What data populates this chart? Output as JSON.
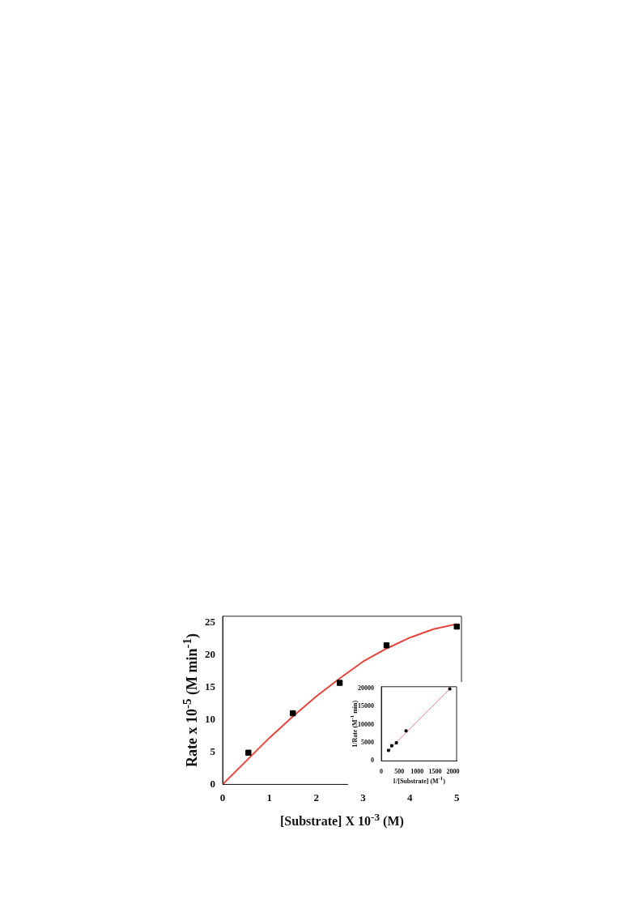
{
  "chart_data": [
    {
      "type": "scatter",
      "xlabel": "[Substrate] X 10$^{-3}$ (M)",
      "ylabel": "Rate x 10$^{-5}$ (M min$^{-1}$)",
      "xlim": [
        0,
        5.1
      ],
      "ylim": [
        0,
        26
      ],
      "xticks": [
        0,
        1,
        2,
        3,
        4,
        5
      ],
      "yticks": [
        0,
        5,
        10,
        15,
        20,
        25
      ],
      "grid": false,
      "legend": false,
      "series": [
        {
          "color": "#000000",
          "marker": "square",
          "x": [
            0.55,
            1.5,
            2.5,
            3.5,
            5
          ],
          "values": [
            4.9,
            11,
            15.7,
            21.5,
            24.4
          ]
        },
        {
          "type": "line",
          "color": "#e8433a",
          "marker": "none",
          "line_style": "solid",
          "x": [
            0,
            0.5,
            1,
            1.5,
            2,
            2.5,
            3,
            3.5,
            4,
            4.5,
            5
          ],
          "values": [
            0,
            3.6,
            7.2,
            10.5,
            13.6,
            16.4,
            19.0,
            21.0,
            22.7,
            24.0,
            24.8
          ]
        }
      ]
    },
    {
      "type": "scatter",
      "xlabel": "1/[Substrate] (M$^{-1}$)",
      "ylabel": "1/Rate (M$^{-1}$ min)",
      "xlim": [
        0,
        2100
      ],
      "ylim": [
        0,
        20500
      ],
      "xticks": [
        0,
        500,
        1000,
        1500,
        2000
      ],
      "yticks": [
        0,
        5000,
        10000,
        15000,
        20000
      ],
      "grid": false,
      "legend": false,
      "series": [
        {
          "color": "#000000",
          "marker": "square",
          "x": [
            200,
            290,
            420,
            690,
            1910
          ],
          "values": [
            2900,
            4200,
            5000,
            8300,
            19900
          ]
        },
        {
          "type": "line",
          "color": "#f08080",
          "marker": "none",
          "line_style": "solid",
          "x": [
            200,
            1910
          ],
          "values": [
            2900,
            19900
          ]
        }
      ]
    }
  ]
}
